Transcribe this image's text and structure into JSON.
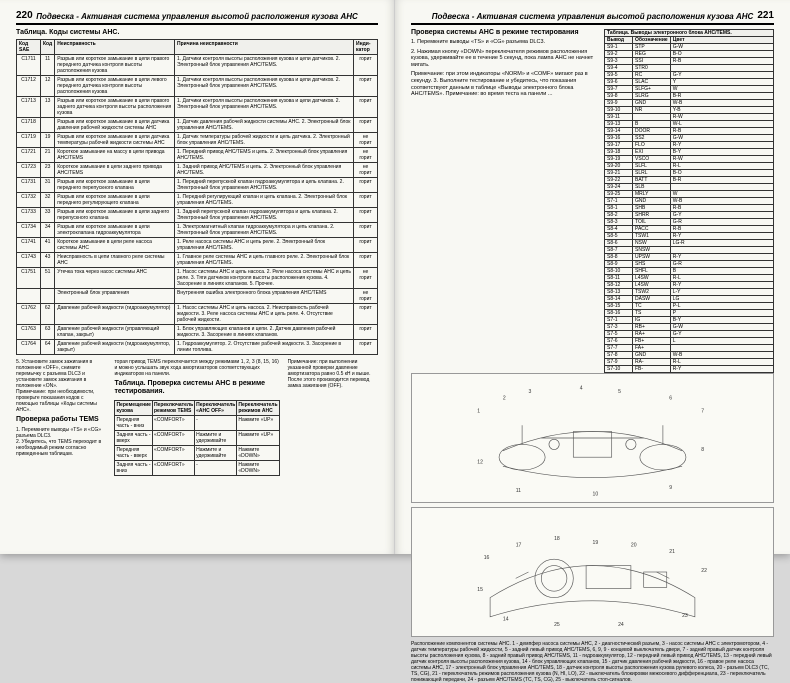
{
  "leftPage": {
    "num": "220",
    "header": "Подвеска - Активная система управления высотой расположения кузова AHC",
    "tableTitle": "Таблица. Коды системы AHC.",
    "th": [
      "Код SAE",
      "Код",
      "Неисправность",
      "Причина неисправности",
      "Инди-катор"
    ],
    "rows": [
      [
        "C1711",
        "11",
        "Разрыв или короткое замыкание в цепи правого переднего датчика контроля высоты расположения кузова",
        "1. Датчики контроля высоты расположения кузова и цепи датчиков.\n2. Электронный блок управления AHC/TEMS.",
        "горит"
      ],
      [
        "C1712",
        "12",
        "Разрыв или короткое замыкание в цепи левого переднего датчика контроля высоты расположения кузова",
        "1. Датчики контроля высоты расположения кузова и цепи датчиков.\n2. Электронный блок управления AHC/TEMS.",
        "горит"
      ],
      [
        "C1713",
        "13",
        "Разрыв или короткое замыкание в цепи правого заднего датчика контроля высоты расположения кузова",
        "1. Датчики контроля высоты расположения кузова и цепи датчиков.\n2. Электронный блок управления AHC/TEMS.",
        "горит"
      ],
      [
        "C1718",
        "",
        "Разрыв или короткое замыкание в цепи датчика давления рабочей жидкости системы AHC",
        "1. Датчик давления рабочей жидкости системы AHC.\n2. Электронный блок управления AHC/TEMS.",
        "горит"
      ],
      [
        "C1719",
        "19",
        "Разрыв или короткое замыкание в цепи датчика температуры рабочей жидкости системы AHC",
        "1. Датчик температуры рабочей жидкости и цепь датчика.\n2. Электронный блок управления AHC/TEMS.",
        "не горит"
      ],
      [
        "C1721",
        "21",
        "Короткое замыкание на массу в цепи привода AHC/TEMS",
        "1. Передний привод AHC/TEMS и цепь.\n2. Электронный блок управления AHC/TEMS.",
        "не горит"
      ],
      [
        "C1723",
        "23",
        "Короткое замыкание в цепи заднего привода AHC/TEMS",
        "1. Задний привод AHC/TEMS и цепь.\n2. Электронный блок управления AHC/TEMS.",
        "не горит"
      ],
      [
        "C1731",
        "31",
        "Разрыв или короткое замыкание в цепи переднего перепускного клапана",
        "1. Передний перепускной клапан гидроаккумулятора и цепь клапана.\n2. Электронный блок управления AHC/TEMS.",
        "горит"
      ],
      [
        "C1732",
        "32",
        "Разрыв или короткое замыкание в цепи переднего регулирующего клапана",
        "1. Передний регулирующий клапан и цепь клапана.\n2. Электронный блок управления AHC/TEMS.",
        "горит"
      ],
      [
        "C1733",
        "33",
        "Разрыв или короткое замыкание в цепи заднего перепускного клапана",
        "1. Задний перепускной клапан гидроаккумулятора и цепь клапана.\n2. Электронный блок управления AHC/TEMS.",
        "горит"
      ],
      [
        "C1734",
        "34",
        "Разрыв или короткое замыкание в цепи электроклапана гидроаккумулятора",
        "1. Электромагнитный клапан гидроаккумулятора и цепь клапана.\n2. Электронный блок управления AHC/TEMS.",
        "горит"
      ],
      [
        "C1741",
        "41",
        "Короткое замыкание в цепи реле насоса системы AHC",
        "1. Реле насоса системы AHC и цепь реле.\n2. Электронный блок управления AHC/TEMS.",
        "горит"
      ],
      [
        "C1743",
        "43",
        "Неисправность в цепи главного реле системы AHC",
        "1. Главное реле системы AHC и цепь главного реле.\n2. Электронный блок управления AHC/TEMS.",
        "горит"
      ],
      [
        "C1751",
        "51",
        "Утечка тока через насос системы AHC",
        "1. Насос системы AHC и цепь насоса.\n2. Реле насоса системы AHC и цепь реле.\n3. Тяги датчиков контроля высоты расположения кузова.\n4. Засорение в линиях клапанов.\n5. Прочее.",
        "не горит"
      ],
      [
        "",
        "",
        "Электронный блок управления",
        "Внутренняя ошибка электронного блока управления AHC/TEMS",
        "не горит"
      ],
      [
        "C1762",
        "62",
        "Давление рабочей жидкости (гидроаккумулятор)",
        "1. Насос системы AHC и цепь насоса.\n2. Неисправность рабочей жидкости.\n3. Реле насоса системы AHC и цепь реле.\n4. Отсутствие рабочей жидкости.",
        "горит"
      ],
      [
        "C1763",
        "63",
        "Давление рабочей жидкости (управляющий клапан, закрыт)",
        "1. Блок управляющих клапанов и цепи.\n2. Датчик давления рабочей жидкости.\n3. Засорение в линиях клапанов.",
        "горит"
      ],
      [
        "C1764",
        "64",
        "Давление рабочей жидкости (гидроаккумулятор, закрыт)",
        "1. Гидроаккумулятор.\n2. Отсутствие рабочей жидкости.\n3. Засорение в линии топлива.",
        "горит"
      ]
    ],
    "footer": {
      "p1": "5. Установите замок зажигания в положение «OFF», снимите перемычку с разъема DLC3 и установите замок зажигания в положение «ON».",
      "p2": "Примечание: при необходимости, проверьте показания кодов с помощью таблицы «Коды системы AHC».",
      "tems_title": "Проверка работы TEMS",
      "tems_1": "1. Перемкните выводы «TS» и «CG» разъема DLC3.",
      "tems_2": "2. Убедитесь, что TEMS переходит в необходимый режим согласно приведенным таблицам.",
      "col2_p1": "торая привод TEMS переключается между режимами 1, 2, 3 (8, 15, 16) и можно услышать звук хода амортизаторов соответствующих индикаторов на панели.",
      "col2_title": "Таблица. Проверка системы AHC в режиме тестирования.",
      "col3_p1": "Примечание: при выполнении указанной проверки давление амортизатора равно 0.5 кН и выше. После этого производится перевод замка зажигания (OFF).",
      "small_th": [
        "Перемещение кузова",
        "Переключатель режимов TEMS",
        "Переключатель «AHC OFF»",
        "Переключатель режимов AHC"
      ],
      "small_rows": [
        [
          "Передняя часть - вниз",
          "«COMFORT»",
          "-",
          "Нажмите «UP»"
        ],
        [
          "Задняя часть - вверх",
          "«COMFORT»",
          "Нажмите и удерживайте",
          "Нажмите «UP»"
        ],
        [
          "Передняя часть - вверх",
          "«COMFORT»",
          "Нажмите и удерживайте",
          "Нажмите «DOWN»"
        ],
        [
          "Задняя часть - вниз",
          "«COMFORT»",
          "-",
          "Нажмите «DOWN»"
        ]
      ]
    }
  },
  "rightPage": {
    "num": "221",
    "header": "Подвеска - Активная система управления высотой расположения кузова AHC",
    "sectionTitle": "Проверка системы AHC в режиме тестирования",
    "intro1": "1. Перемкните выводы «TS» и «CG» разъема DLC3.",
    "intro2": "2. Нажимая кнопку «DOWN» переключателя режимов расположения кузова, удерживайте ее в течение 5 секунд, пока лампа AHC не начнет мигать.",
    "intro_note": "Примечание: при этом индикаторы «NORM» и «COMF» мигают раз в секунду.\n3. Выполните тестирование и убедитесь, что показания соответствуют данным в таблице «Выводы электронного блока AHC/TEMS».\nПримечание: во время теста на панели ...",
    "wireTitle": "Таблица. Выводы электронного блока AHC/TEMS.",
    "wth": [
      "Вывод",
      "Обозначение",
      "Цвет"
    ],
    "wrows": [
      [
        "S9-1",
        "STP",
        "G-W"
      ],
      [
        "S9-2",
        "REG",
        "B-O"
      ],
      [
        "S9-3",
        "SSI",
        "R-B"
      ],
      [
        "S9-4",
        "STR0",
        ""
      ],
      [
        "S9-5",
        "RC",
        "G-Y"
      ],
      [
        "S9-6",
        "SLAC",
        "Y"
      ],
      [
        "S9-7",
        "SLFG+",
        "W"
      ],
      [
        "S9-8",
        "SLRG",
        "B-R"
      ],
      [
        "S9-9",
        "GND",
        "W-B"
      ],
      [
        "S9-10",
        "NR",
        "Y-B"
      ],
      [
        "S9-11",
        "",
        "R-W"
      ],
      [
        "S9-13",
        "B",
        "W-L"
      ],
      [
        "S9-14",
        "DOOR",
        "R-B"
      ],
      [
        "S9-16",
        "SS2",
        "G-W"
      ],
      [
        "S9-17",
        "FLO",
        "R-Y"
      ],
      [
        "S9-18",
        "EXI",
        "B-Y"
      ],
      [
        "S9-19",
        "VSCO",
        "R-W"
      ],
      [
        "S9-20",
        "SLFL",
        "R-L"
      ],
      [
        "S9-21",
        "SLRL",
        "B-O"
      ],
      [
        "S9-22",
        "BATT",
        "B-R"
      ],
      [
        "S9-24",
        "SLB",
        ""
      ],
      [
        "S9-25",
        "MRLY",
        "W"
      ],
      [
        "S7-1",
        "GND",
        "W-B"
      ],
      [
        "S8-1",
        "SHB",
        "R-B"
      ],
      [
        "S8-2",
        "SHRR",
        "G-Y"
      ],
      [
        "S8-3",
        "TOIL",
        "G-R"
      ],
      [
        "S8-4",
        "PACC",
        "R-B"
      ],
      [
        "S8-5",
        "TSW1",
        "R-Y"
      ],
      [
        "S8-6",
        "NSW",
        "LG-R"
      ],
      [
        "S8-7",
        "SNSW",
        ""
      ],
      [
        "S8-8",
        "UPSW",
        "R-Y"
      ],
      [
        "S8-9",
        "SHS",
        "G-R"
      ],
      [
        "S8-10",
        "SHFL",
        "B"
      ],
      [
        "S8-11",
        "L4SW",
        "R-L"
      ],
      [
        "S8-12",
        "L4SW",
        "R-Y"
      ],
      [
        "S8-13",
        "TSW2",
        "L-Y"
      ],
      [
        "S8-14",
        "DASW",
        "LG"
      ],
      [
        "S8-15",
        "TC",
        "P-L"
      ],
      [
        "S8-16",
        "TS",
        "P"
      ],
      [
        "S7-1",
        "IG",
        "B-Y"
      ],
      [
        "S7-3",
        "RB+",
        "G-W"
      ],
      [
        "S7-5",
        "RA+",
        "G-Y"
      ],
      [
        "S7-6",
        "FB+",
        "L"
      ],
      [
        "S7-7",
        "FA+",
        ""
      ],
      [
        "S7-8",
        "GND",
        "W-B"
      ],
      [
        "S7-9",
        "RA-",
        "R-L"
      ],
      [
        "S7-10",
        "FB-",
        "R-Y"
      ]
    ],
    "caption": "Расположение компонентов системы AHC. 1 - демпфер насоса системы AHC, 2 - диагностический разъем, 3 - насос системы AHC с электромотором, 4 - датчик температуры рабочей жидкости, 5 - задний левый привод AHC/TEMS, 6, 9, 9 - концевой выключатель двери, 7 - задний правый датчик контроля высоты расположения кузова, 8 - задний правый привод AHC/TEMS, 11 - гидроаккумулятор, 12 - передний левый привод AHC/TEMS, 13 - передний левый датчик контроля высоты расположения кузова, 14 - блок управляющих клапанов, 15 - датчик давления рабочей жидкости, 16 - правое реле насоса системы AHC, 17 - электронный блок управления AHC/TEMS, 18 - датчик контроля высоты расположения кузова рулевого колеса, 20 - разъем DLC3 (TC, TS, CG), 21 - переключатель режимов расположения кузова (N, HI, LO), 22 - выключатель блокировки межосевого дифференциала, 23 - переключатель понижающей передачи, 24 - разъем AHC/TEMS (TC, TS, CG), 25 - выключатель стоп-сигналов."
  }
}
